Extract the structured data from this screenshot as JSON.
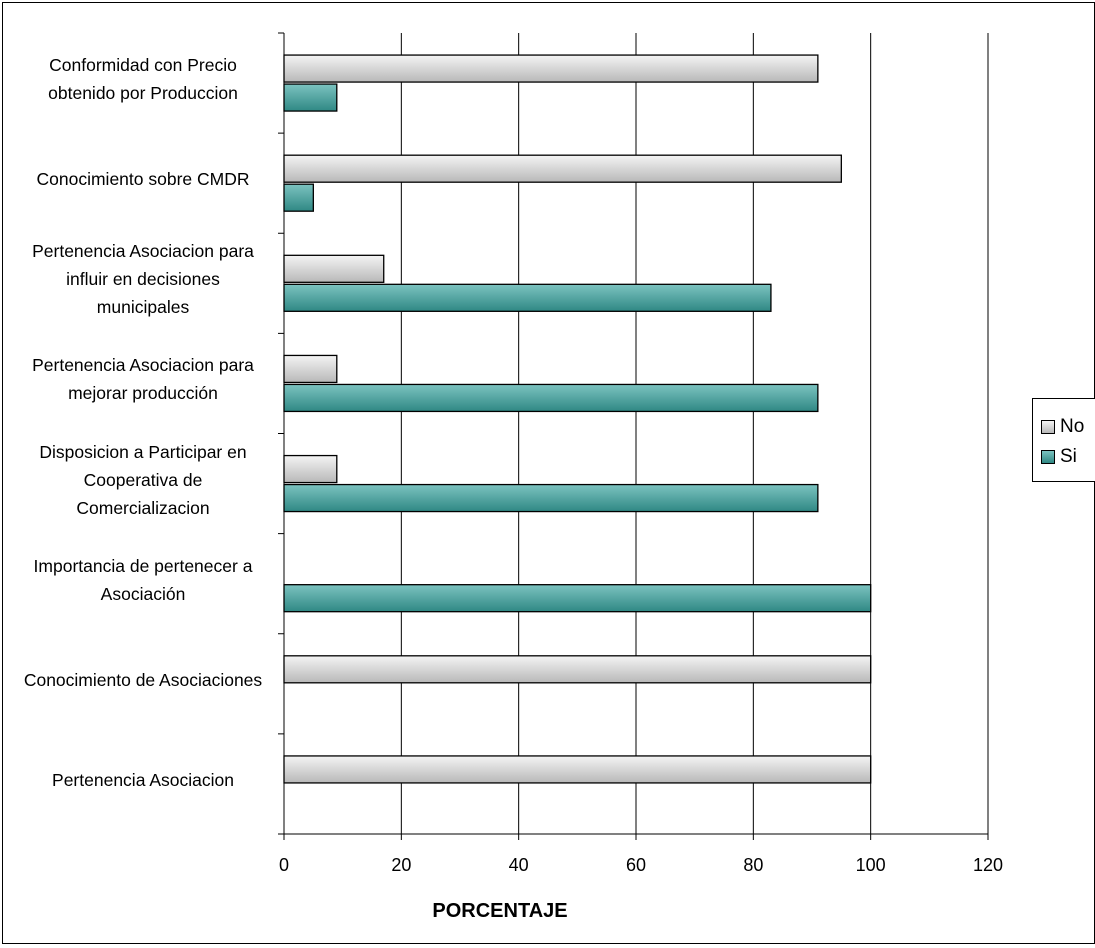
{
  "chart_data": {
    "type": "bar",
    "orientation": "horizontal",
    "categories": [
      "Conformidad con Precio obtenido por Produccion",
      "Conocimiento sobre CMDR",
      "Pertenencia Asociacion para influir en decisiones municipales",
      "Pertenencia Asociacion para mejorar producción",
      "Disposicion a Participar en Cooperativa de Comercializacion",
      "Importancia de pertenecer a Asociación",
      "Conocimiento de Asociaciones",
      "Pertenencia Asociacion"
    ],
    "series": [
      {
        "name": "No",
        "color": "#d4d4d4",
        "values": [
          91,
          95,
          17,
          9,
          9,
          0,
          100,
          100
        ]
      },
      {
        "name": "Si",
        "color": "#4fa3a0",
        "values": [
          9,
          5,
          83,
          91,
          91,
          100,
          0,
          0
        ]
      }
    ],
    "xlabel": "PORCENTAJE",
    "ylabel": "",
    "xlim": [
      0,
      120
    ],
    "xticks": [
      0,
      20,
      40,
      60,
      80,
      100,
      120
    ],
    "grid": "vertical",
    "legend_position": "right"
  }
}
